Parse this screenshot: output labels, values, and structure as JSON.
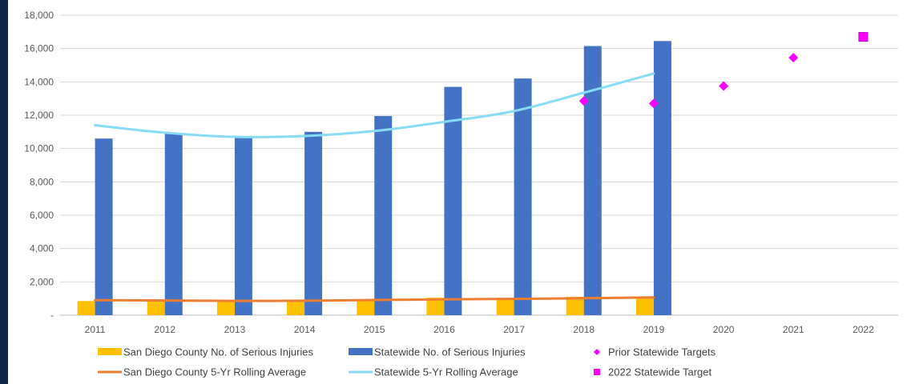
{
  "chart_data": {
    "type": "bar",
    "categories": [
      "2011",
      "2012",
      "2013",
      "2014",
      "2015",
      "2016",
      "2017",
      "2018",
      "2019",
      "2020",
      "2021",
      "2022"
    ],
    "ylim": [
      0,
      18000
    ],
    "y_ticks": [
      0,
      2000,
      4000,
      6000,
      8000,
      10000,
      12000,
      14000,
      16000,
      18000
    ],
    "y_tick_labels": [
      "-",
      "2,000",
      "4,000",
      "6,000",
      "8,000",
      "10,000",
      "12,000",
      "14,000",
      "16,000",
      "18,000"
    ],
    "grid": true,
    "legend_position": "bottom",
    "series": [
      {
        "name": "San Diego County No. of Serious Injuries",
        "kind": "bar",
        "color": "#ffc000",
        "values": [
          850,
          880,
          830,
          830,
          930,
          1050,
          1000,
          1100,
          1060,
          null,
          null,
          null
        ]
      },
      {
        "name": "Statewide No. of Serious Injuries",
        "kind": "bar",
        "color": "#4472c4",
        "values": [
          10600,
          10900,
          10700,
          11000,
          11950,
          13700,
          14200,
          16150,
          16450,
          null,
          null,
          null
        ]
      },
      {
        "name": "Prior Statewide Targets",
        "kind": "marker-diamond",
        "color": "#ff00ff",
        "values": [
          null,
          null,
          null,
          null,
          null,
          null,
          null,
          12850,
          12700,
          13750,
          15450,
          null
        ]
      },
      {
        "name": "San Diego County 5-Yr Rolling Average",
        "kind": "line",
        "color": "#ed7d31",
        "values": [
          900,
          880,
          860,
          870,
          910,
          950,
          980,
          1020,
          1070,
          null,
          null,
          null
        ]
      },
      {
        "name": "Statewide 5-Yr Rolling Average",
        "kind": "line",
        "color": "#87dcf5",
        "values": [
          11400,
          10950,
          10700,
          10750,
          11050,
          11600,
          12250,
          13350,
          14500,
          null,
          null,
          null
        ]
      },
      {
        "name": "2022 Statewide Target",
        "kind": "marker-square",
        "color": "#ff00ff",
        "values": [
          null,
          null,
          null,
          null,
          null,
          null,
          null,
          null,
          null,
          null,
          null,
          16700
        ]
      }
    ]
  }
}
